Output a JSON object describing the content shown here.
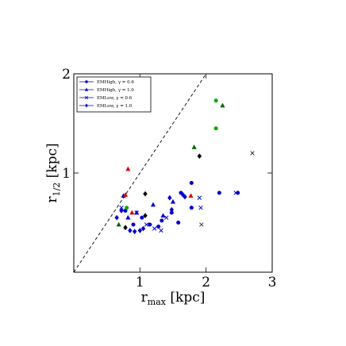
{
  "chart_data": {
    "type": "scatter",
    "title": "",
    "xlabel": "r",
    "xlabel_sub": "max",
    "xlabel_unit": " [kpc]",
    "ylabel": "r",
    "ylabel_sub": "1/2",
    "ylabel_unit": " [kpc]",
    "xlim": [
      0,
      3
    ],
    "ylim": [
      0,
      2
    ],
    "x_ticks": [
      1,
      2,
      3
    ],
    "x_tick_labels": [
      "1",
      "2",
      "3"
    ],
    "y_ticks": [
      1,
      2
    ],
    "y_tick_labels": [
      "1",
      "2"
    ],
    "grid": false,
    "legend_position": "top-left",
    "reference_line": {
      "style": "dashed",
      "slope": 1,
      "color": "#000000"
    },
    "series": [
      {
        "name": "EMHigh, γ = 0.6",
        "marker": "circle",
        "color": "#0000cc",
        "points": [
          {
            "x": 0.78,
            "y": 0.62
          },
          {
            "x": 0.9,
            "y": 0.48
          },
          {
            "x": 1.03,
            "y": 0.55
          },
          {
            "x": 1.15,
            "y": 0.48
          },
          {
            "x": 1.28,
            "y": 0.46
          },
          {
            "x": 1.33,
            "y": 0.52
          },
          {
            "x": 1.48,
            "y": 0.6
          },
          {
            "x": 1.58,
            "y": 0.5
          },
          {
            "x": 1.62,
            "y": 0.8
          },
          {
            "x": 1.78,
            "y": 0.9
          },
          {
            "x": 1.78,
            "y": 0.65
          },
          {
            "x": 2.2,
            "y": 0.8
          },
          {
            "x": 2.48,
            "y": 0.8
          }
        ]
      },
      {
        "name": "EMHigh, γ = 1.0",
        "marker": "triangle",
        "color": "#0000cc",
        "points": [
          {
            "x": 0.75,
            "y": 0.77
          },
          {
            "x": 0.82,
            "y": 0.55
          },
          {
            "x": 0.95,
            "y": 0.6
          },
          {
            "x": 1.2,
            "y": 0.68
          },
          {
            "x": 1.35,
            "y": 0.57
          },
          {
            "x": 1.5,
            "y": 0.71
          }
        ]
      },
      {
        "name": "EMLow, γ = 0.6",
        "marker": "x",
        "color": "#0000cc",
        "points": [
          {
            "x": 0.72,
            "y": 0.65
          },
          {
            "x": 0.95,
            "y": 0.6
          },
          {
            "x": 1.1,
            "y": 0.48
          },
          {
            "x": 1.22,
            "y": 0.44
          },
          {
            "x": 1.32,
            "y": 0.42
          },
          {
            "x": 1.4,
            "y": 0.55
          },
          {
            "x": 1.9,
            "y": 0.75
          },
          {
            "x": 1.92,
            "y": 0.65
          },
          {
            "x": 2.45,
            "y": 0.8
          }
        ]
      },
      {
        "name": "EMLow, γ = 1.0",
        "marker": "diamond",
        "color": "#0000cc",
        "points": [
          {
            "x": 0.65,
            "y": 0.55
          },
          {
            "x": 0.72,
            "y": 0.62
          },
          {
            "x": 0.85,
            "y": 0.42
          },
          {
            "x": 0.92,
            "y": 0.41
          },
          {
            "x": 1.0,
            "y": 0.42
          },
          {
            "x": 1.05,
            "y": 0.44
          },
          {
            "x": 1.45,
            "y": 0.75
          },
          {
            "x": 1.48,
            "y": 0.63
          },
          {
            "x": 1.65,
            "y": 0.78
          },
          {
            "x": 1.68,
            "y": 0.76
          }
        ]
      },
      {
        "marker": "circle",
        "color": "#00aa00",
        "points": [
          {
            "x": 0.8,
            "y": 0.65
          },
          {
            "x": 2.15,
            "y": 1.73
          },
          {
            "x": 2.15,
            "y": 1.45
          }
        ]
      },
      {
        "marker": "triangle",
        "color": "#006600",
        "points": [
          {
            "x": 0.68,
            "y": 0.48
          },
          {
            "x": 1.82,
            "y": 1.26
          },
          {
            "x": 2.25,
            "y": 1.68
          }
        ]
      },
      {
        "marker": "triangle",
        "color": "#dd0000",
        "points": [
          {
            "x": 0.78,
            "y": 0.78
          },
          {
            "x": 0.82,
            "y": 1.04
          },
          {
            "x": 0.88,
            "y": 0.6
          },
          {
            "x": 1.77,
            "y": 0.77
          }
        ]
      },
      {
        "marker": "diamond",
        "color": "#000000",
        "points": [
          {
            "x": 0.78,
            "y": 0.45
          },
          {
            "x": 1.08,
            "y": 0.79
          },
          {
            "x": 1.08,
            "y": 0.57
          },
          {
            "x": 1.9,
            "y": 1.17
          }
        ]
      },
      {
        "marker": "x",
        "color": "#333333",
        "points": [
          {
            "x": 1.93,
            "y": 0.48
          },
          {
            "x": 2.7,
            "y": 1.2
          }
        ]
      }
    ]
  }
}
